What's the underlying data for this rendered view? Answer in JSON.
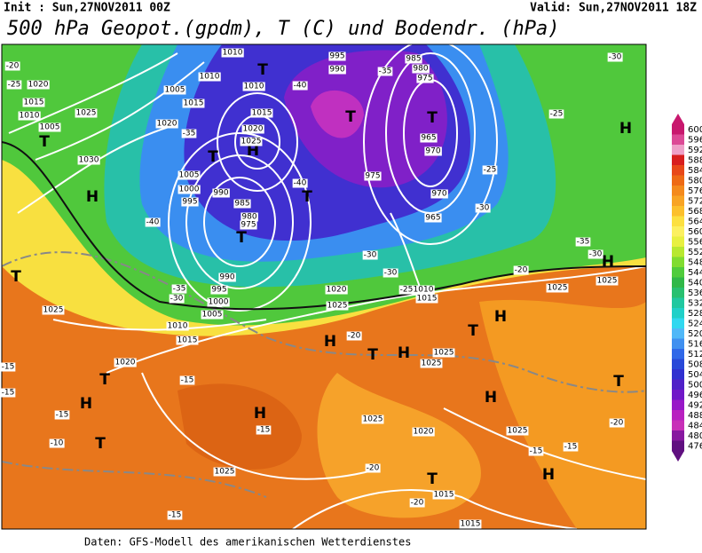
{
  "header": {
    "init": "Init : Sun,27NOV2011 00Z",
    "valid": "Valid: Sun,27NOV2011 18Z",
    "title": "500 hPa Geopot.(gpdm), T (C) und Bodendr. (hPa)"
  },
  "legend": {
    "values": [
      600,
      596,
      592,
      588,
      584,
      580,
      576,
      572,
      568,
      564,
      560,
      556,
      552,
      548,
      544,
      540,
      536,
      532,
      528,
      524,
      520,
      516,
      512,
      508,
      504,
      500,
      496,
      492,
      488,
      484,
      480,
      476
    ],
    "colors": [
      "#c8186e",
      "#dc4a96",
      "#eea0c8",
      "#d81e1e",
      "#e84818",
      "#ee6a14",
      "#f48a1c",
      "#f8a424",
      "#fcc02c",
      "#fce040",
      "#fcf060",
      "#e8f040",
      "#b8e830",
      "#80dc30",
      "#50cc3c",
      "#30b848",
      "#28c070",
      "#20c8a0",
      "#20d0c8",
      "#30d8f0",
      "#50b8f8",
      "#4090f0",
      "#3068e8",
      "#2848d8",
      "#3030d0",
      "#5020c8",
      "#7018c8",
      "#9818c8",
      "#b820c0",
      "#c830b8",
      "#8818a0",
      "#601080"
    ]
  },
  "map_labels": [
    "T",
    "H",
    "T",
    "T",
    "H",
    "T",
    "H",
    "T",
    "H",
    "T",
    "T",
    "T",
    "T",
    "T",
    "H",
    "T",
    "H",
    "H",
    "T",
    "H",
    "T",
    "H",
    "T",
    "H",
    "H",
    "1025",
    "1030",
    "1020",
    "1015",
    "1010",
    "1005",
    "1020",
    "1015",
    "1010",
    "1005",
    "1010",
    "1010",
    "1015",
    "1020",
    "1025",
    "1005",
    "1000",
    "995",
    "990",
    "985",
    "980",
    "975",
    "995",
    "990",
    "985",
    "980",
    "975",
    "965",
    "970",
    "975",
    "970",
    "965",
    "990",
    "995",
    "1000",
    "1005",
    "1010",
    "1015",
    "1020",
    "1025",
    "1020",
    "1025",
    "1010",
    "1015",
    "1025",
    "1025",
    "1025",
    "1020",
    "1025",
    "1015",
    "1015",
    "1025",
    "1025",
    "1025",
    "-20",
    "-25",
    "-30",
    "-25",
    "-35",
    "-40",
    "-35",
    "-40",
    "-40",
    "-35",
    "-30",
    "-35",
    "-30",
    "-30",
    "-30",
    "-25",
    "-20",
    "-20",
    "-20",
    "-15",
    "-15",
    "-15",
    "-10",
    "-15",
    "-15",
    "-15",
    "-15",
    "-20",
    "-20",
    "-15",
    "-25",
    "-30"
  ],
  "footer": "Daten: GFS-Modell des amerikanischen Wetterdienstes"
}
